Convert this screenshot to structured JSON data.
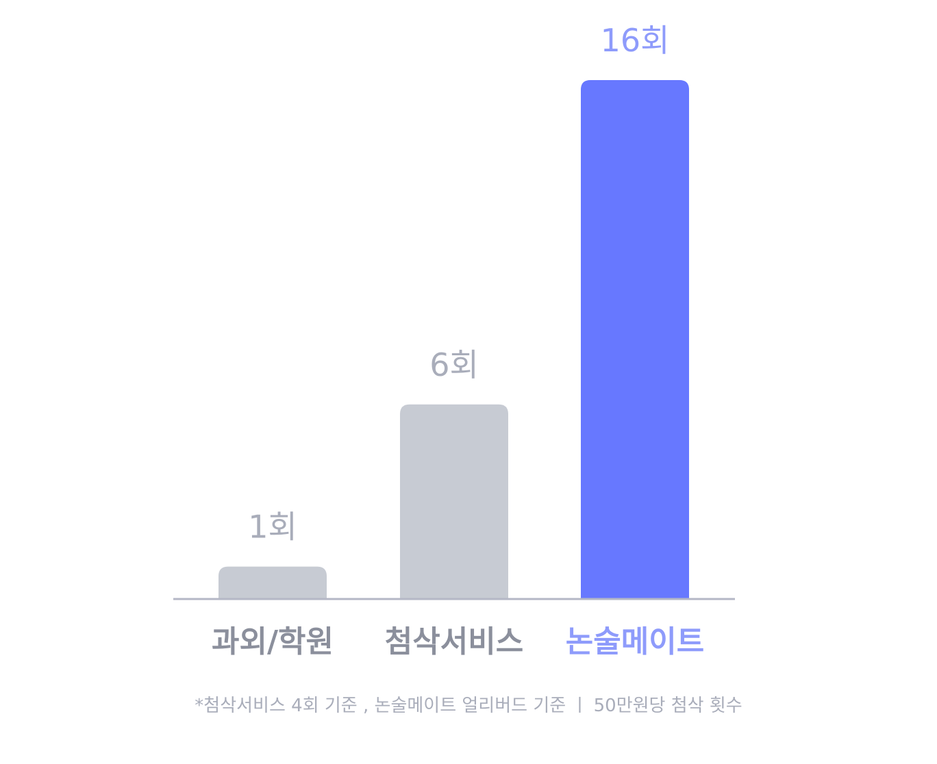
{
  "chart_data": {
    "type": "bar",
    "categories": [
      "과외/학원",
      "첨삭서비스",
      "논술메이트"
    ],
    "values": [
      1,
      6,
      16
    ],
    "value_labels": [
      "1회",
      "6회",
      "16회"
    ],
    "title": "",
    "xlabel": "",
    "ylabel": "",
    "ylim": [
      0,
      16
    ],
    "grid": false,
    "highlight_index": 2,
    "colors": {
      "bar_default": "#c7cbd3",
      "bar_highlight": "#6778ff",
      "value_label_default": "#a9adba",
      "value_label_highlight": "#8e9bfb",
      "category_label_default": "#8b8f9c",
      "category_label_highlight": "#8e9bfb",
      "baseline": "#b4b7c6"
    }
  },
  "footnote": "*첨삭서비스 4회 기준 , 논술메이트 얼리버드 기준 ㅣ 50만원당 첨삭 횟수"
}
